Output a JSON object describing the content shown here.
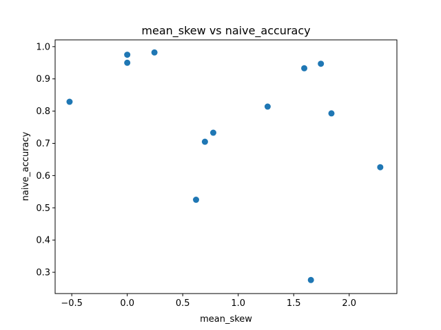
{
  "chart_data": {
    "type": "scatter",
    "title": "mean_skew vs naive_accuracy",
    "xlabel": "mean_skew",
    "ylabel": "naive_accuracy",
    "xlim": [
      -0.65,
      2.43
    ],
    "ylim": [
      0.234,
      1.021
    ],
    "grid": false,
    "legend": "none",
    "marker_color": "#1f77b4",
    "xticks": [
      -0.5,
      0.0,
      0.5,
      1.0,
      1.5,
      2.0
    ],
    "xtick_labels": [
      "−0.5",
      "0.0",
      "0.5",
      "1.0",
      "1.5",
      "2.0"
    ],
    "yticks": [
      0.3,
      0.4,
      0.5,
      0.6,
      0.7,
      0.8,
      0.9,
      1.0
    ],
    "ytick_labels": [
      "0.3",
      "0.4",
      "0.5",
      "0.6",
      "0.7",
      "0.8",
      "0.9",
      "1.0"
    ],
    "points": [
      {
        "x": -0.52,
        "y": 0.829
      },
      {
        "x": 0.0,
        "y": 0.975
      },
      {
        "x": 0.0,
        "y": 0.95
      },
      {
        "x": 0.245,
        "y": 0.982
      },
      {
        "x": 0.62,
        "y": 0.525
      },
      {
        "x": 0.7,
        "y": 0.705
      },
      {
        "x": 0.775,
        "y": 0.733
      },
      {
        "x": 1.265,
        "y": 0.814
      },
      {
        "x": 1.595,
        "y": 0.933
      },
      {
        "x": 1.655,
        "y": 0.276
      },
      {
        "x": 1.745,
        "y": 0.947
      },
      {
        "x": 1.84,
        "y": 0.793
      },
      {
        "x": 2.28,
        "y": 0.626
      }
    ]
  }
}
